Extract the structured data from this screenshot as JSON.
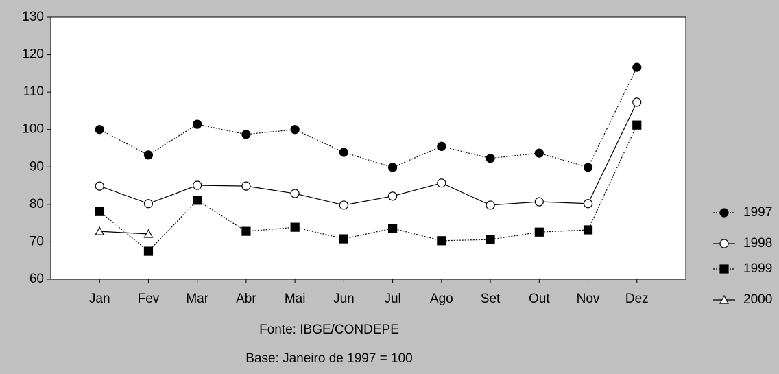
{
  "chart_data": {
    "type": "line",
    "categories": [
      "Jan",
      "Fev",
      "Mar",
      "Abr",
      "Mai",
      "Jun",
      "Jul",
      "Ago",
      "Set",
      "Out",
      "Nov",
      "Dez"
    ],
    "series": [
      {
        "name": "1997",
        "color": "#000000",
        "dash": "dotted",
        "marker": "circle",
        "filled": true,
        "values": [
          100,
          93.2,
          101.4,
          98.7,
          100,
          93.9,
          89.9,
          95.5,
          92.3,
          93.7,
          89.9,
          116.6
        ]
      },
      {
        "name": "1998",
        "color": "#000000",
        "dash": "solid",
        "marker": "circle",
        "filled": false,
        "values": [
          84.9,
          80.2,
          85.1,
          84.9,
          82.9,
          79.8,
          82.2,
          85.7,
          79.8,
          80.7,
          80.2,
          107.3
        ]
      },
      {
        "name": "1999",
        "color": "#000000",
        "dash": "dotted",
        "marker": "square",
        "filled": true,
        "values": [
          78.1,
          67.5,
          81.1,
          72.8,
          73.9,
          70.8,
          73.6,
          70.3,
          70.6,
          72.6,
          73.2,
          101.2
        ]
      },
      {
        "name": "2000",
        "color": "#000000",
        "dash": "solid",
        "marker": "triangle",
        "filled": false,
        "values": [
          72.8,
          72.1,
          null,
          null,
          null,
          null,
          null,
          null,
          null,
          null,
          null,
          null
        ]
      }
    ],
    "ylim": [
      60,
      130
    ],
    "yticks": [
      60,
      70,
      80,
      90,
      100,
      110,
      120,
      130
    ],
    "notes": [
      "Fonte: IBGE/CONDEPE",
      "Base: Janeiro de 1997 = 100"
    ],
    "legend": "right"
  }
}
